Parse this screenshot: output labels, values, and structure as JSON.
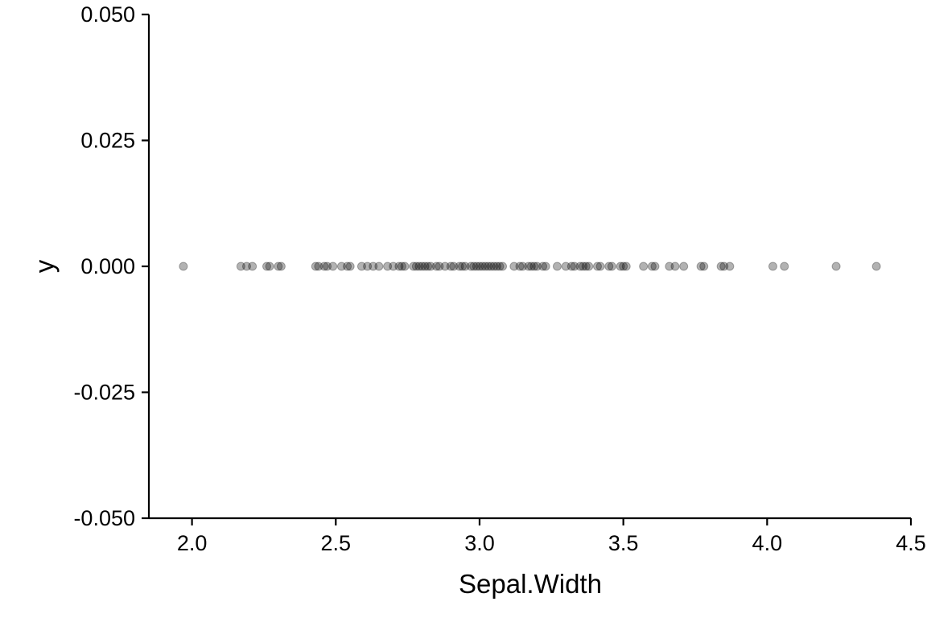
{
  "chart_data": {
    "type": "scatter",
    "title": "",
    "xlabel": "Sepal.Width",
    "ylabel": "y",
    "xlim": [
      1.85,
      4.5
    ],
    "ylim": [
      -0.05,
      0.05
    ],
    "xticks": [
      2.0,
      2.5,
      3.0,
      3.5,
      4.0,
      4.5
    ],
    "xtick_labels": [
      "2.0",
      "2.5",
      "3.0",
      "3.5",
      "4.0",
      "4.5"
    ],
    "yticks": [
      -0.05,
      -0.025,
      0.0,
      0.025,
      0.05
    ],
    "ytick_labels": [
      "-0.050",
      "-0.025",
      "0.000",
      "0.025",
      "0.050"
    ],
    "grid": false,
    "legend": "none",
    "point_color": "#000000",
    "point_opacity": 0.3,
    "series": [
      {
        "x": [
          1.97,
          2.17,
          2.19,
          2.21,
          2.26,
          2.27,
          2.3,
          2.31,
          2.43,
          2.44,
          2.46,
          2.47,
          2.49,
          2.52,
          2.54,
          2.55,
          2.59,
          2.61,
          2.63,
          2.65,
          2.68,
          2.7,
          2.72,
          2.73,
          2.74,
          2.77,
          2.78,
          2.79,
          2.8,
          2.81,
          2.82,
          2.83,
          2.85,
          2.86,
          2.88,
          2.9,
          2.91,
          2.93,
          2.94,
          2.95,
          2.97,
          2.98,
          2.99,
          3.0,
          3.01,
          3.02,
          3.03,
          3.04,
          3.05,
          3.06,
          3.07,
          3.08,
          3.12,
          3.14,
          3.15,
          3.17,
          3.18,
          3.19,
          3.2,
          3.22,
          3.23,
          3.27,
          3.3,
          3.32,
          3.33,
          3.35,
          3.36,
          3.37,
          3.38,
          3.41,
          3.42,
          3.45,
          3.46,
          3.49,
          3.5,
          3.51,
          3.57,
          3.6,
          3.61,
          3.66,
          3.68,
          3.71,
          3.77,
          3.78,
          3.84,
          3.85,
          3.87,
          4.02,
          4.06,
          4.24,
          4.38
        ],
        "y": [
          0,
          0,
          0,
          0,
          0,
          0,
          0,
          0,
          0,
          0,
          0,
          0,
          0,
          0,
          0,
          0,
          0,
          0,
          0,
          0,
          0,
          0,
          0,
          0,
          0,
          0,
          0,
          0,
          0,
          0,
          0,
          0,
          0,
          0,
          0,
          0,
          0,
          0,
          0,
          0,
          0,
          0,
          0,
          0,
          0,
          0,
          0,
          0,
          0,
          0,
          0,
          0,
          0,
          0,
          0,
          0,
          0,
          0,
          0,
          0,
          0,
          0,
          0,
          0,
          0,
          0,
          0,
          0,
          0,
          0,
          0,
          0,
          0,
          0,
          0,
          0,
          0,
          0,
          0,
          0,
          0,
          0,
          0,
          0,
          0,
          0,
          0,
          0,
          0,
          0,
          0
        ]
      }
    ]
  }
}
